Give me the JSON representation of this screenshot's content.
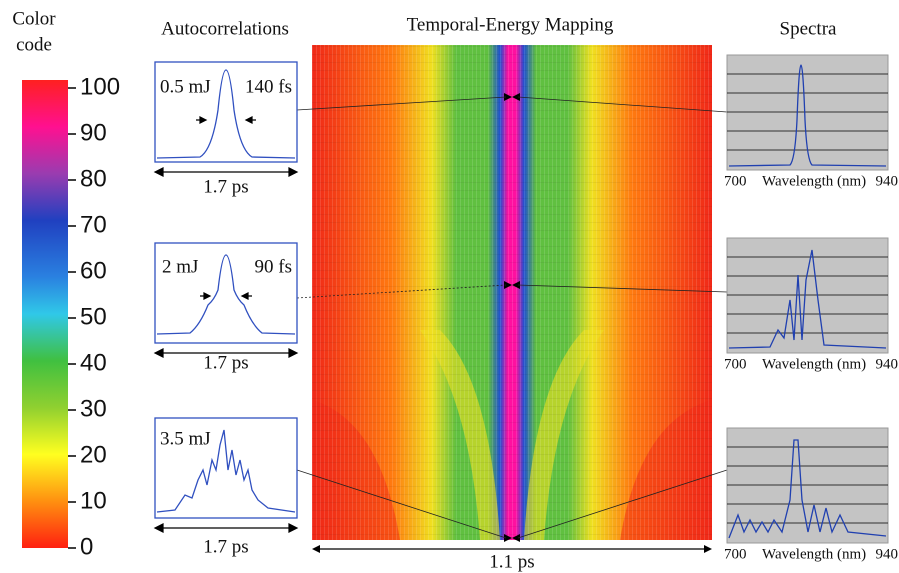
{
  "color_code": {
    "title_lines": [
      "Color",
      "code"
    ],
    "ticks": [
      0,
      10,
      20,
      30,
      40,
      50,
      60,
      70,
      80,
      90,
      100
    ]
  },
  "autocorrelations": {
    "title": "Autocorrelations",
    "panels": [
      {
        "energy": "0.5 mJ",
        "width": "140 fs",
        "span": "1.7 ps"
      },
      {
        "energy": "2 mJ",
        "width": "90 fs",
        "span": "1.7 ps"
      },
      {
        "energy": "3.5 mJ",
        "span": "1.7 ps"
      }
    ]
  },
  "mapping": {
    "title": "Temporal-Energy Mapping",
    "span": "1.1 ps"
  },
  "spectra": {
    "title": "Spectra",
    "panels": [
      {
        "x_min": 700,
        "x_label": "Wavelength (nm)",
        "x_max": 940
      },
      {
        "x_min": 700,
        "x_label": "Wavelength (nm)",
        "x_max": 940
      },
      {
        "x_min": 700,
        "x_label": "Wavelength (nm)",
        "x_max": 940
      }
    ]
  }
}
